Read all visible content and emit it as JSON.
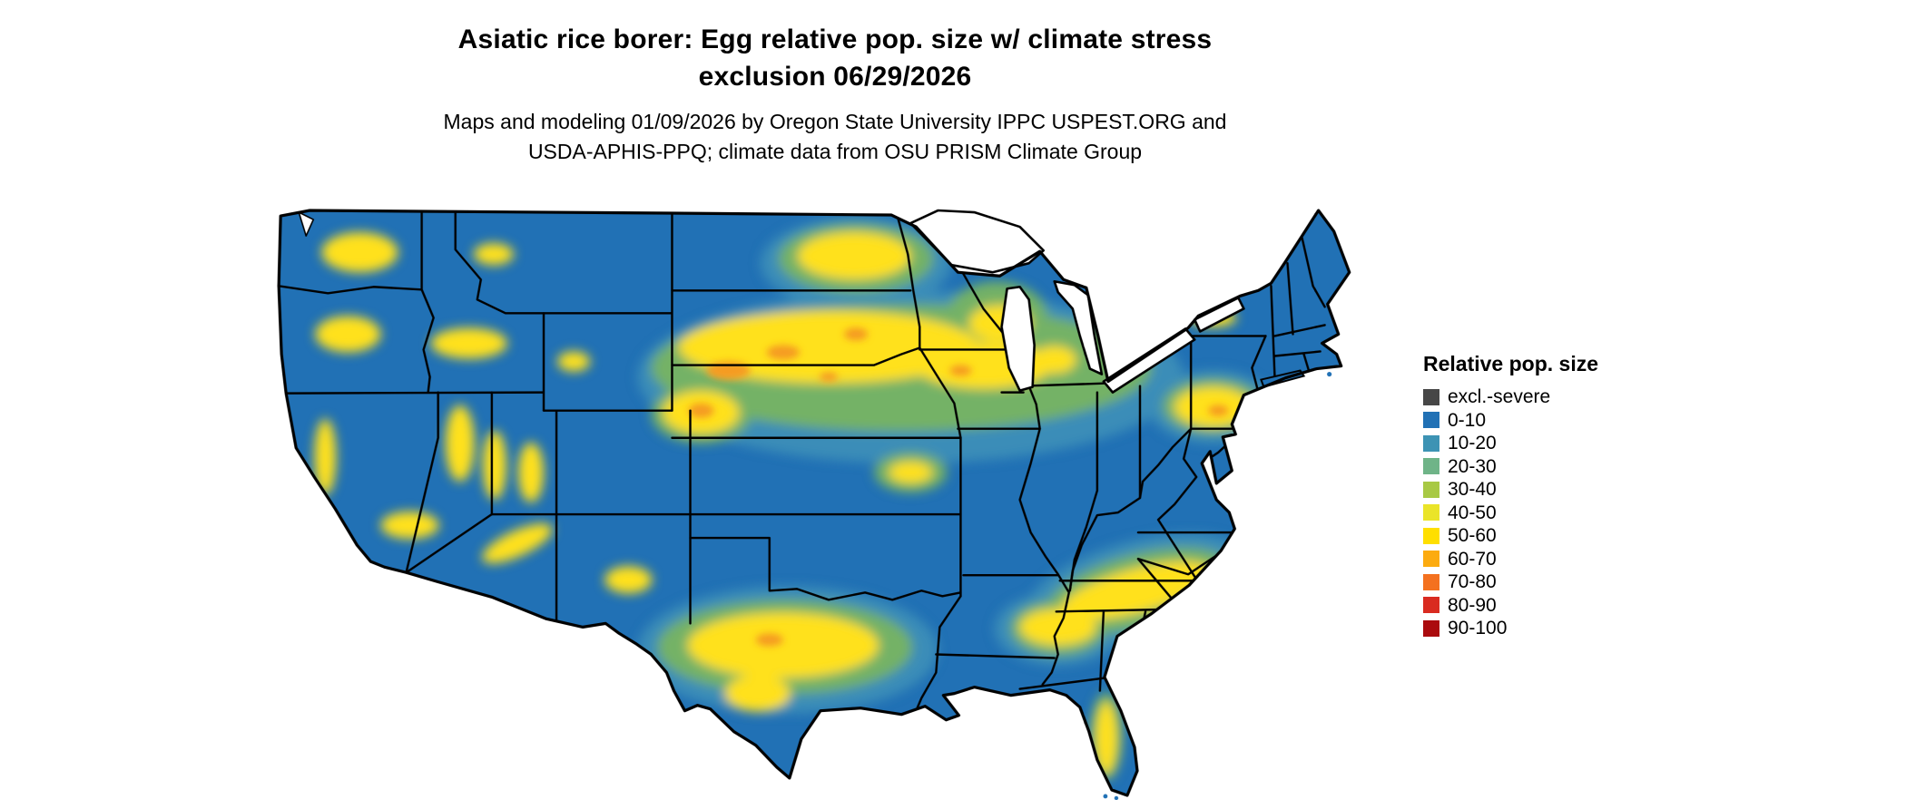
{
  "header": {
    "title_line1": "Asiatic rice borer: Egg relative pop. size w/ climate stress",
    "title_line2": "exclusion 06/29/2026",
    "subtitle_line1": "Maps and modeling 01/09/2026 by Oregon State University IPPC USPEST.ORG and",
    "subtitle_line2": "USDA-APHIS-PPQ; climate data from OSU PRISM Climate Group"
  },
  "legend": {
    "title": "Relative pop. size",
    "items": [
      {
        "label": "excl.-severe",
        "color": "#474747"
      },
      {
        "label": "0-10",
        "color": "#2171b5"
      },
      {
        "label": "10-20",
        "color": "#3d93b4"
      },
      {
        "label": "20-30",
        "color": "#6fb488"
      },
      {
        "label": "30-40",
        "color": "#a8c944"
      },
      {
        "label": "40-50",
        "color": "#eae429"
      },
      {
        "label": "50-60",
        "color": "#ffdf00"
      },
      {
        "label": "60-70",
        "color": "#fcab10"
      },
      {
        "label": "70-80",
        "color": "#f4711f"
      },
      {
        "label": "80-90",
        "color": "#d92b20"
      },
      {
        "label": "90-100",
        "color": "#ab0b0e"
      }
    ]
  },
  "map": {
    "region": "Contiguous United States",
    "base_fill": "#2171b5",
    "border_color": "#000000",
    "water_color": "#ffffff",
    "background": "#ffffff",
    "elevated_value_areas": [
      "Nebraska-Iowa-Illinois central band with 60-70 pockets",
      "North Dakota / Minnesota border zone",
      "Interior West basin-and-range mottling (WA, OR, ID, NV, UT, AZ, NM)",
      "Central and southern Texas band",
      "Southeast coastal plain band (AL, GA, SC, NC)",
      "Mid-Atlantic pocket (SE Pennsylvania, New Jersey, Maryland)",
      "Central Florida ridge"
    ]
  }
}
